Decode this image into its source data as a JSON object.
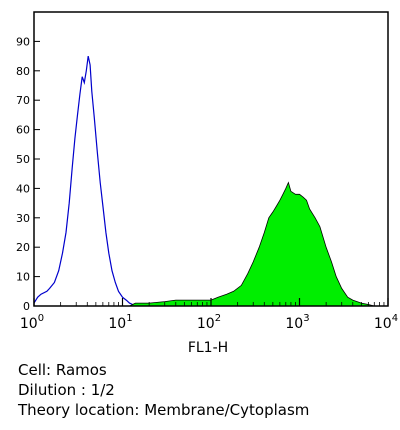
{
  "chart_data": {
    "type": "area",
    "xlabel": "FL1-H",
    "ylabel": "",
    "x_scale": "log",
    "xlim": [
      1,
      10000
    ],
    "ylim": [
      0,
      100
    ],
    "grid": false,
    "x_ticks": [
      {
        "value": 1,
        "base": "10",
        "exp": "0"
      },
      {
        "value": 10,
        "base": "10",
        "exp": "1"
      },
      {
        "value": 100,
        "base": "10",
        "exp": "2"
      },
      {
        "value": 1000,
        "base": "10",
        "exp": "3"
      },
      {
        "value": 10000,
        "base": "10",
        "exp": "4"
      }
    ],
    "y_ticks": [
      "0",
      "10",
      "20",
      "30",
      "40",
      "50",
      "60",
      "70",
      "80",
      "90"
    ],
    "series": [
      {
        "style": "outline",
        "color": "#0000cc",
        "points": [
          [
            1.0,
            1
          ],
          [
            1.1,
            3
          ],
          [
            1.2,
            4
          ],
          [
            1.4,
            5
          ],
          [
            1.5,
            6
          ],
          [
            1.7,
            8
          ],
          [
            1.9,
            12
          ],
          [
            2.1,
            18
          ],
          [
            2.3,
            25
          ],
          [
            2.5,
            35
          ],
          [
            2.7,
            47
          ],
          [
            2.9,
            57
          ],
          [
            3.1,
            65
          ],
          [
            3.3,
            72
          ],
          [
            3.5,
            78
          ],
          [
            3.7,
            76
          ],
          [
            3.9,
            80
          ],
          [
            4.1,
            85
          ],
          [
            4.3,
            82
          ],
          [
            4.5,
            73
          ],
          [
            4.8,
            64
          ],
          [
            5.2,
            52
          ],
          [
            5.6,
            42
          ],
          [
            6.0,
            34
          ],
          [
            6.5,
            25
          ],
          [
            7.0,
            18
          ],
          [
            7.6,
            12
          ],
          [
            8.3,
            8
          ],
          [
            9.0,
            5
          ],
          [
            10.0,
            3
          ],
          [
            11.0,
            2
          ],
          [
            12.0,
            1
          ],
          [
            13.0,
            0.5
          ],
          [
            14.0,
            0
          ]
        ]
      },
      {
        "style": "filled",
        "color": "#00ee00",
        "points": [
          [
            12,
            0
          ],
          [
            14,
            1
          ],
          [
            20,
            1
          ],
          [
            30,
            1.5
          ],
          [
            40,
            2
          ],
          [
            60,
            2
          ],
          [
            80,
            2
          ],
          [
            100,
            2
          ],
          [
            120,
            3
          ],
          [
            150,
            4
          ],
          [
            180,
            5
          ],
          [
            220,
            7
          ],
          [
            260,
            11
          ],
          [
            300,
            15
          ],
          [
            350,
            20
          ],
          [
            400,
            25
          ],
          [
            450,
            30
          ],
          [
            500,
            32
          ],
          [
            550,
            34
          ],
          [
            600,
            36
          ],
          [
            650,
            38
          ],
          [
            700,
            40
          ],
          [
            750,
            42
          ],
          [
            800,
            39
          ],
          [
            900,
            38
          ],
          [
            1000,
            38
          ],
          [
            1100,
            37
          ],
          [
            1200,
            36
          ],
          [
            1300,
            33
          ],
          [
            1500,
            30
          ],
          [
            1700,
            27
          ],
          [
            2000,
            20
          ],
          [
            2300,
            15
          ],
          [
            2600,
            10
          ],
          [
            3000,
            6
          ],
          [
            3500,
            3
          ],
          [
            4000,
            2
          ],
          [
            5000,
            1
          ],
          [
            6000,
            0.5
          ],
          [
            7000,
            0
          ]
        ]
      }
    ]
  },
  "caption": {
    "cell": "Cell: Ramos",
    "dilution": "Dilution : 1/2",
    "location": "Theory location: Membrane/Cytoplasm"
  }
}
